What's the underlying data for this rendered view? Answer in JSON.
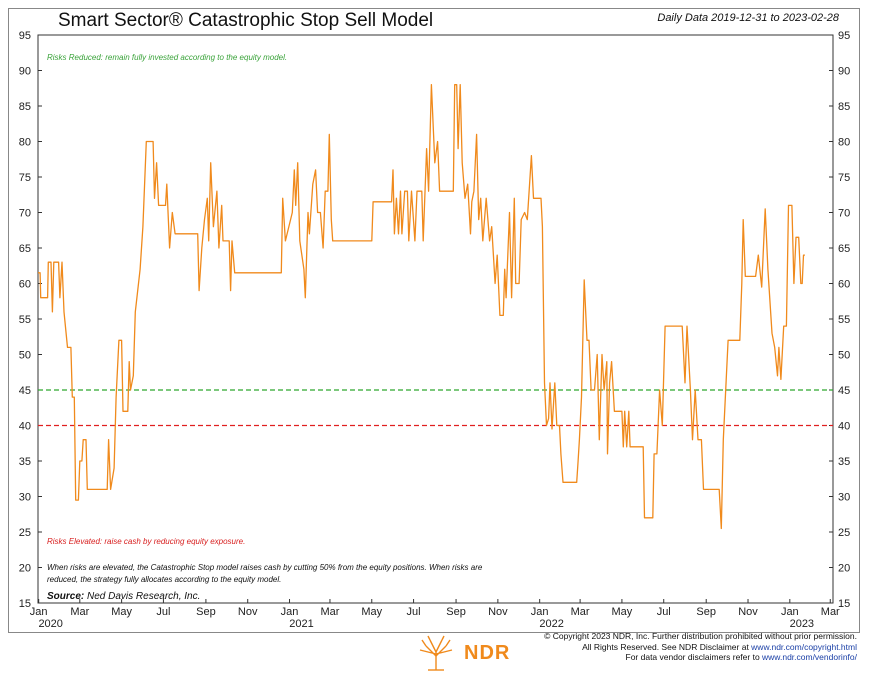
{
  "header": {
    "title": "Smart Sector® Catastrophic Stop Sell Model",
    "date_range": "Daily Data 2019-12-31 to 2023-02-28"
  },
  "notes": {
    "risks_reduced": "Risks Reduced: remain fully invested according to the equity model.",
    "risks_elevated": "Risks Elevated: raise cash by reducing equity exposure.",
    "explanation": "When risks are elevated, the Catastrophic Stop model raises cash by cutting 50% from the equity positions. When risks are reduced, the strategy fully allocates according to the equity model.",
    "source_label": "Source:",
    "source_value": "Ned Davis Research, Inc."
  },
  "footer": {
    "line1": "© Copyright 2023 NDR, Inc. Further distribution prohibited without prior permission.",
    "line2_prefix": "All Rights Reserved. See NDR Disclaimer at ",
    "line2_link": "www.ndr.com/copyright.html",
    "line3_prefix": "For data vendor disclaimers refer to ",
    "line3_link": "www.ndr.com/vendorinfo/",
    "logo_text": "NDR"
  },
  "colors": {
    "series": "#f08a1c",
    "upper_threshold": "#2ea82e",
    "lower_threshold": "#e02020"
  },
  "chart_data": {
    "type": "line",
    "title": "Smart Sector® Catastrophic Stop Sell Model",
    "xlabel": "",
    "ylabel": "",
    "ylim": [
      15,
      95
    ],
    "y_ticks": [
      15,
      20,
      25,
      30,
      35,
      40,
      45,
      50,
      55,
      60,
      65,
      70,
      75,
      80,
      85,
      90,
      95
    ],
    "x_range": [
      "2019-12-31",
      "2023-03-05"
    ],
    "x_ticks": [
      {
        "label": "Jan",
        "date": "2020-01-01"
      },
      {
        "label": "Mar",
        "date": "2020-03-01"
      },
      {
        "label": "May",
        "date": "2020-05-01"
      },
      {
        "label": "Jul",
        "date": "2020-07-01"
      },
      {
        "label": "Sep",
        "date": "2020-09-01"
      },
      {
        "label": "Nov",
        "date": "2020-11-01"
      },
      {
        "label": "Jan",
        "date": "2021-01-01"
      },
      {
        "label": "Mar",
        "date": "2021-03-01"
      },
      {
        "label": "May",
        "date": "2021-05-01"
      },
      {
        "label": "Jul",
        "date": "2021-07-01"
      },
      {
        "label": "Sep",
        "date": "2021-09-01"
      },
      {
        "label": "Nov",
        "date": "2021-11-01"
      },
      {
        "label": "Jan",
        "date": "2022-01-01"
      },
      {
        "label": "Mar",
        "date": "2022-03-01"
      },
      {
        "label": "May",
        "date": "2022-05-01"
      },
      {
        "label": "Jul",
        "date": "2022-07-01"
      },
      {
        "label": "Sep",
        "date": "2022-09-01"
      },
      {
        "label": "Nov",
        "date": "2022-11-01"
      },
      {
        "label": "Jan",
        "date": "2023-01-01"
      },
      {
        "label": "Mar",
        "date": "2023-03-01"
      }
    ],
    "year_labels": [
      {
        "label": "2020",
        "date": "2020-01-01"
      },
      {
        "label": "2021",
        "date": "2021-01-01"
      },
      {
        "label": "2022",
        "date": "2022-01-01"
      },
      {
        "label": "2023",
        "date": "2023-01-01"
      }
    ],
    "thresholds": [
      {
        "value": 45,
        "color": "#2ea82e",
        "style": "dashed"
      },
      {
        "value": 40,
        "color": "#e02020",
        "style": "dashed"
      }
    ],
    "series": [
      {
        "points": [
          [
            "2019-12-31",
            61.5
          ],
          [
            "2020-01-03",
            61.5
          ],
          [
            "2020-01-04",
            58
          ],
          [
            "2020-01-14",
            58
          ],
          [
            "2020-01-15",
            63
          ],
          [
            "2020-01-19",
            63
          ],
          [
            "2020-01-21",
            56
          ],
          [
            "2020-01-23",
            63
          ],
          [
            "2020-01-30",
            63
          ],
          [
            "2020-02-01",
            58
          ],
          [
            "2020-02-04",
            63
          ],
          [
            "2020-02-07",
            56
          ],
          [
            "2020-02-12",
            51
          ],
          [
            "2020-02-17",
            51
          ],
          [
            "2020-02-19",
            44
          ],
          [
            "2020-02-22",
            44
          ],
          [
            "2020-02-24",
            29.5
          ],
          [
            "2020-02-28",
            29.5
          ],
          [
            "2020-03-01",
            35
          ],
          [
            "2020-03-04",
            35
          ],
          [
            "2020-03-06",
            38
          ],
          [
            "2020-03-10",
            38
          ],
          [
            "2020-03-12",
            31
          ],
          [
            "2020-04-10",
            31
          ],
          [
            "2020-04-12",
            38
          ],
          [
            "2020-04-15",
            31
          ],
          [
            "2020-04-20",
            34
          ],
          [
            "2020-04-23",
            44
          ],
          [
            "2020-04-27",
            52
          ],
          [
            "2020-05-01",
            52
          ],
          [
            "2020-05-03",
            42
          ],
          [
            "2020-05-10",
            42
          ],
          [
            "2020-05-12",
            49
          ],
          [
            "2020-05-14",
            45
          ],
          [
            "2020-05-18",
            47
          ],
          [
            "2020-05-21",
            56
          ],
          [
            "2020-05-28",
            62
          ],
          [
            "2020-06-01",
            68
          ],
          [
            "2020-06-06",
            80
          ],
          [
            "2020-06-16",
            80
          ],
          [
            "2020-06-18",
            72
          ],
          [
            "2020-06-21",
            77
          ],
          [
            "2020-06-24",
            71
          ],
          [
            "2020-07-04",
            71
          ],
          [
            "2020-07-06",
            74
          ],
          [
            "2020-07-10",
            65
          ],
          [
            "2020-07-14",
            70
          ],
          [
            "2020-07-18",
            67
          ],
          [
            "2020-08-20",
            67
          ],
          [
            "2020-08-22",
            59
          ],
          [
            "2020-08-26",
            65
          ],
          [
            "2020-08-30",
            69
          ],
          [
            "2020-09-03",
            72
          ],
          [
            "2020-09-05",
            66
          ],
          [
            "2020-09-08",
            77
          ],
          [
            "2020-09-12",
            68
          ],
          [
            "2020-09-17",
            73
          ],
          [
            "2020-09-20",
            65
          ],
          [
            "2020-09-24",
            71
          ],
          [
            "2020-09-26",
            66
          ],
          [
            "2020-10-05",
            66
          ],
          [
            "2020-10-07",
            59
          ],
          [
            "2020-10-09",
            66
          ],
          [
            "2020-10-13",
            61.5
          ],
          [
            "2020-12-20",
            61.5
          ],
          [
            "2020-12-22",
            72
          ],
          [
            "2020-12-26",
            66
          ],
          [
            "2021-01-05",
            70
          ],
          [
            "2021-01-08",
            76
          ],
          [
            "2021-01-10",
            71
          ],
          [
            "2021-01-13",
            77
          ],
          [
            "2021-01-16",
            66
          ],
          [
            "2021-01-22",
            62
          ],
          [
            "2021-01-24",
            58
          ],
          [
            "2021-01-28",
            70
          ],
          [
            "2021-01-30",
            67
          ],
          [
            "2021-02-04",
            74
          ],
          [
            "2021-02-08",
            76
          ],
          [
            "2021-02-11",
            70
          ],
          [
            "2021-02-15",
            70
          ],
          [
            "2021-02-19",
            65
          ],
          [
            "2021-02-22",
            73
          ],
          [
            "2021-02-26",
            73
          ],
          [
            "2021-02-28",
            81
          ],
          [
            "2021-03-03",
            69
          ],
          [
            "2021-03-05",
            66
          ],
          [
            "2021-05-01",
            66
          ],
          [
            "2021-05-03",
            71.5
          ],
          [
            "2021-05-30",
            71.5
          ],
          [
            "2021-06-01",
            76
          ],
          [
            "2021-06-03",
            67
          ],
          [
            "2021-06-06",
            72
          ],
          [
            "2021-06-09",
            67
          ],
          [
            "2021-06-12",
            73
          ],
          [
            "2021-06-14",
            67
          ],
          [
            "2021-06-18",
            73
          ],
          [
            "2021-06-22",
            73
          ],
          [
            "2021-06-24",
            66
          ],
          [
            "2021-06-28",
            73
          ],
          [
            "2021-07-03",
            66
          ],
          [
            "2021-07-06",
            73
          ],
          [
            "2021-07-13",
            73
          ],
          [
            "2021-07-15",
            66
          ],
          [
            "2021-07-20",
            79
          ],
          [
            "2021-07-23",
            73
          ],
          [
            "2021-07-27",
            88
          ],
          [
            "2021-08-01",
            77
          ],
          [
            "2021-08-05",
            80
          ],
          [
            "2021-08-08",
            73
          ],
          [
            "2021-08-28",
            73
          ],
          [
            "2021-08-30",
            88
          ],
          [
            "2021-09-02",
            88
          ],
          [
            "2021-09-04",
            79
          ],
          [
            "2021-09-07",
            88
          ],
          [
            "2021-09-10",
            77
          ],
          [
            "2021-09-14",
            72
          ],
          [
            "2021-09-18",
            74
          ],
          [
            "2021-09-22",
            67
          ],
          [
            "2021-09-24",
            71.5
          ],
          [
            "2021-09-27",
            73
          ],
          [
            "2021-10-01",
            81
          ],
          [
            "2021-10-04",
            69
          ],
          [
            "2021-10-07",
            72
          ],
          [
            "2021-10-10",
            66
          ],
          [
            "2021-10-15",
            72
          ],
          [
            "2021-10-20",
            66
          ],
          [
            "2021-10-23",
            68
          ],
          [
            "2021-10-28",
            60
          ],
          [
            "2021-10-31",
            64
          ],
          [
            "2021-11-04",
            55.5
          ],
          [
            "2021-11-09",
            55.5
          ],
          [
            "2021-11-11",
            62
          ],
          [
            "2021-11-13",
            58
          ],
          [
            "2021-11-18",
            70
          ],
          [
            "2021-11-21",
            58
          ],
          [
            "2021-11-25",
            72
          ],
          [
            "2021-11-27",
            60
          ],
          [
            "2021-12-02",
            60
          ],
          [
            "2021-12-05",
            69
          ],
          [
            "2021-12-10",
            70
          ],
          [
            "2021-12-14",
            69
          ],
          [
            "2021-12-20",
            78
          ],
          [
            "2021-12-23",
            72
          ],
          [
            "2021-12-27",
            72
          ],
          [
            "2022-01-03",
            72
          ],
          [
            "2022-01-05",
            68
          ],
          [
            "2022-01-08",
            46
          ],
          [
            "2022-01-11",
            40
          ],
          [
            "2022-01-14",
            41
          ],
          [
            "2022-01-16",
            46
          ],
          [
            "2022-01-19",
            39.5
          ],
          [
            "2022-01-23",
            46
          ],
          [
            "2022-01-26",
            40
          ],
          [
            "2022-01-30",
            40
          ],
          [
            "2022-02-01",
            36
          ],
          [
            "2022-02-04",
            32
          ],
          [
            "2022-02-24",
            32
          ],
          [
            "2022-02-26",
            35
          ],
          [
            "2022-02-28",
            38
          ],
          [
            "2022-03-03",
            44
          ],
          [
            "2022-03-07",
            60.5
          ],
          [
            "2022-03-11",
            52
          ],
          [
            "2022-03-14",
            52
          ],
          [
            "2022-03-17",
            45
          ],
          [
            "2022-03-22",
            45
          ],
          [
            "2022-03-26",
            50
          ],
          [
            "2022-03-29",
            38
          ],
          [
            "2022-04-02",
            50
          ],
          [
            "2022-04-05",
            45
          ],
          [
            "2022-04-09",
            49
          ],
          [
            "2022-04-10",
            36
          ],
          [
            "2022-04-13",
            46
          ],
          [
            "2022-04-16",
            49
          ],
          [
            "2022-04-20",
            42
          ],
          [
            "2022-05-01",
            42
          ],
          [
            "2022-05-03",
            37
          ],
          [
            "2022-05-05",
            42
          ],
          [
            "2022-05-08",
            37
          ],
          [
            "2022-05-11",
            42
          ],
          [
            "2022-05-13",
            37
          ],
          [
            "2022-06-01",
            37
          ],
          [
            "2022-06-03",
            27
          ],
          [
            "2022-06-15",
            27
          ],
          [
            "2022-06-17",
            36
          ],
          [
            "2022-06-21",
            36
          ],
          [
            "2022-06-25",
            45
          ],
          [
            "2022-06-29",
            40
          ],
          [
            "2022-07-03",
            54
          ],
          [
            "2022-07-28",
            54
          ],
          [
            "2022-08-01",
            46
          ],
          [
            "2022-08-04",
            54
          ],
          [
            "2022-08-09",
            45
          ],
          [
            "2022-08-12",
            38
          ],
          [
            "2022-08-16",
            45
          ],
          [
            "2022-08-20",
            38
          ],
          [
            "2022-08-25",
            38
          ],
          [
            "2022-08-28",
            31
          ],
          [
            "2022-09-20",
            31
          ],
          [
            "2022-09-23",
            25.5
          ],
          [
            "2022-09-26",
            38
          ],
          [
            "2022-10-03",
            52
          ],
          [
            "2022-10-20",
            52
          ],
          [
            "2022-10-23",
            60
          ],
          [
            "2022-10-25",
            69
          ],
          [
            "2022-10-28",
            61
          ],
          [
            "2022-11-12",
            61
          ],
          [
            "2022-11-16",
            64
          ],
          [
            "2022-11-21",
            59.5
          ],
          [
            "2022-11-26",
            70.5
          ],
          [
            "2022-11-30",
            62
          ],
          [
            "2022-12-06",
            53
          ],
          [
            "2022-12-10",
            51
          ],
          [
            "2022-12-14",
            47
          ],
          [
            "2022-12-16",
            51
          ],
          [
            "2022-12-19",
            46.5
          ],
          [
            "2022-12-23",
            54
          ],
          [
            "2022-12-27",
            54
          ],
          [
            "2022-12-30",
            71
          ],
          [
            "2023-01-04",
            71
          ],
          [
            "2023-01-07",
            60
          ],
          [
            "2023-01-10",
            66.5
          ],
          [
            "2023-01-14",
            66.5
          ],
          [
            "2023-01-17",
            60
          ],
          [
            "2023-01-19",
            60
          ],
          [
            "2023-01-21",
            64
          ],
          [
            "2023-01-23",
            64
          ]
        ]
      }
    ]
  }
}
